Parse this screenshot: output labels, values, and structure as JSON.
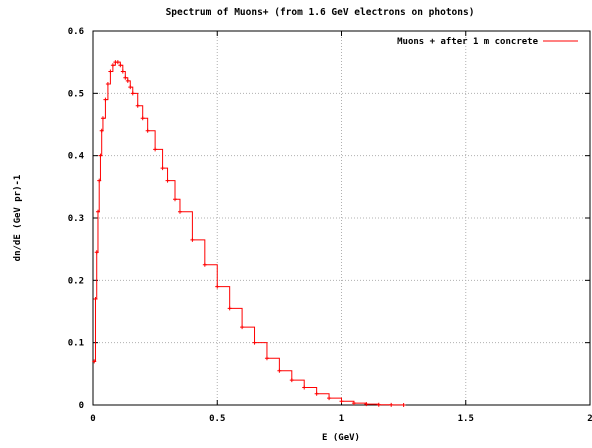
{
  "chart_data": {
    "type": "line",
    "title": "Spectrum of Muons+ (from 1.6 GeV electrons on photons)",
    "xlabel": "E (GeV)",
    "ylabel": "dn/dE (GeV pr)-1",
    "xlim": [
      0,
      2
    ],
    "ylim": [
      0,
      0.6
    ],
    "x_ticks": [
      "0",
      "0.5",
      "1",
      "1.5",
      "2"
    ],
    "y_ticks": [
      "0",
      "0.1",
      "0.2",
      "0.3",
      "0.4",
      "0.5",
      "0.6"
    ],
    "grid": true,
    "legend_position": "top-right",
    "colors": {
      "series": "#ff0000",
      "grid": "#b0b0b0"
    },
    "series": [
      {
        "name": "Muons + after 1 m concrete",
        "x": [
          0.005,
          0.01,
          0.015,
          0.02,
          0.025,
          0.03,
          0.035,
          0.04,
          0.05,
          0.06,
          0.07,
          0.08,
          0.09,
          0.1,
          0.11,
          0.12,
          0.13,
          0.14,
          0.15,
          0.16,
          0.18,
          0.2,
          0.22,
          0.25,
          0.28,
          0.3,
          0.33,
          0.35,
          0.4,
          0.45,
          0.5,
          0.55,
          0.6,
          0.65,
          0.7,
          0.75,
          0.8,
          0.85,
          0.9,
          0.95,
          1.0,
          1.05,
          1.1,
          1.15,
          1.2,
          1.25
        ],
        "y": [
          0.07,
          0.17,
          0.245,
          0.31,
          0.36,
          0.4,
          0.44,
          0.46,
          0.49,
          0.515,
          0.535,
          0.545,
          0.55,
          0.55,
          0.545,
          0.535,
          0.525,
          0.52,
          0.51,
          0.5,
          0.48,
          0.46,
          0.44,
          0.41,
          0.38,
          0.36,
          0.33,
          0.31,
          0.265,
          0.225,
          0.19,
          0.155,
          0.125,
          0.1,
          0.075,
          0.055,
          0.04,
          0.028,
          0.018,
          0.011,
          0.006,
          0.003,
          0.0015,
          0.0005,
          0.0002,
          0
        ]
      }
    ]
  }
}
